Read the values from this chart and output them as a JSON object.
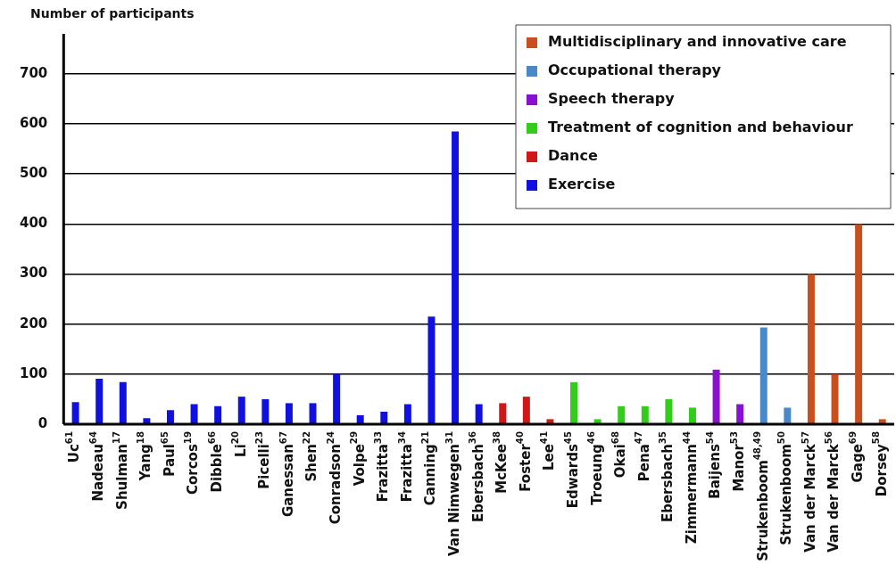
{
  "chart_data": {
    "type": "bar",
    "ylabel": "Number of participants",
    "stacked": true,
    "legend": "top right",
    "grid": "y",
    "categories": [
      "Uc$^{61}$",
      "Nadeau$^{64}$",
      "Shulman$^{17}$",
      "Yang$^{18}$",
      "Paul$^{65}$",
      "Corcos$^{19}$",
      "Dibble$^{66}$",
      "Li$^{20}$",
      "Picelli$^{23}$",
      "Ganessan$^{67}$",
      "Shen$^{22}$",
      "Conradson$^{24}$",
      "Volpe$^{29}$",
      "Frazitta$^{33}$",
      "Frazitta$^{34}$",
      "Canning$^{21}$",
      "Van Nimwegen$^{31}$",
      "Ebersbach$^{36}$",
      "McKee$^{38}$",
      "Foster$^{40}$",
      "Lee$^{41}$",
      "Edwards$^{45}$",
      "Troeung$^{46}$",
      "Okai$^{68}$",
      "Pena$^{47}$",
      "Ebersbach$^{35}$",
      "Zimmermann$^{44}$",
      "Baijens$^{54}$",
      "Manor$^{53}$",
      "Strukenboom$^{48,49}$",
      "Strukenboom$^{50}$",
      "Van der Marck$^{57}$",
      "Van der Marck$^{56}$",
      "Gage$^{69}$",
      "Dorsey$^{58}$"
    ],
    "series": [
      {
        "name": "Multidisciplinary and innovative care",
        "color": "#c8501e",
        "values": [
          null,
          null,
          null,
          null,
          null,
          null,
          null,
          null,
          null,
          null,
          null,
          null,
          null,
          null,
          null,
          null,
          null,
          null,
          null,
          null,
          null,
          null,
          null,
          null,
          null,
          null,
          null,
          null,
          null,
          null,
          null,
          300,
          100,
          400,
          10
        ]
      },
      {
        "name": "Occupational therapy",
        "color": "#4a88cc",
        "values": [
          null,
          null,
          null,
          null,
          null,
          null,
          null,
          null,
          null,
          null,
          null,
          null,
          null,
          null,
          null,
          null,
          null,
          null,
          null,
          null,
          null,
          null,
          null,
          null,
          null,
          null,
          null,
          null,
          null,
          193,
          33,
          null,
          null,
          null,
          null
        ]
      },
      {
        "name": "Speech therapy",
        "color": "#8a10d0",
        "values": [
          null,
          null,
          null,
          null,
          null,
          null,
          null,
          null,
          null,
          null,
          null,
          null,
          null,
          null,
          null,
          null,
          null,
          null,
          null,
          null,
          null,
          null,
          null,
          null,
          null,
          null,
          null,
          109,
          40,
          null,
          null,
          null,
          null,
          null,
          null
        ]
      },
      {
        "name": "Treatment of cognition and behaviour",
        "color": "#33cc1a",
        "values": [
          null,
          null,
          null,
          null,
          null,
          null,
          null,
          null,
          null,
          null,
          null,
          null,
          null,
          null,
          null,
          null,
          null,
          null,
          null,
          null,
          null,
          84,
          10,
          36,
          36,
          50,
          33,
          null,
          null,
          null,
          null,
          null,
          null,
          null,
          null
        ]
      },
      {
        "name": "Dance",
        "color": "#d01818",
        "values": [
          null,
          null,
          null,
          null,
          null,
          null,
          null,
          null,
          null,
          null,
          null,
          null,
          null,
          null,
          null,
          null,
          null,
          null,
          42,
          55,
          10,
          null,
          null,
          null,
          null,
          null,
          null,
          null,
          null,
          null,
          null,
          null,
          null,
          null,
          null
        ]
      },
      {
        "name": "Exercise",
        "color": "#1010e0",
        "values": [
          44,
          91,
          84,
          12,
          28,
          40,
          36,
          55,
          50,
          42,
          42,
          100,
          18,
          25,
          40,
          215,
          585,
          40,
          null,
          null,
          null,
          null,
          null,
          null,
          null,
          null,
          null,
          null,
          null,
          null,
          null,
          null,
          null,
          null,
          null
        ]
      }
    ],
    "ylim": [
      0,
      780
    ],
    "yticks": [
      0,
      100,
      200,
      300,
      400,
      500,
      600,
      700
    ]
  }
}
